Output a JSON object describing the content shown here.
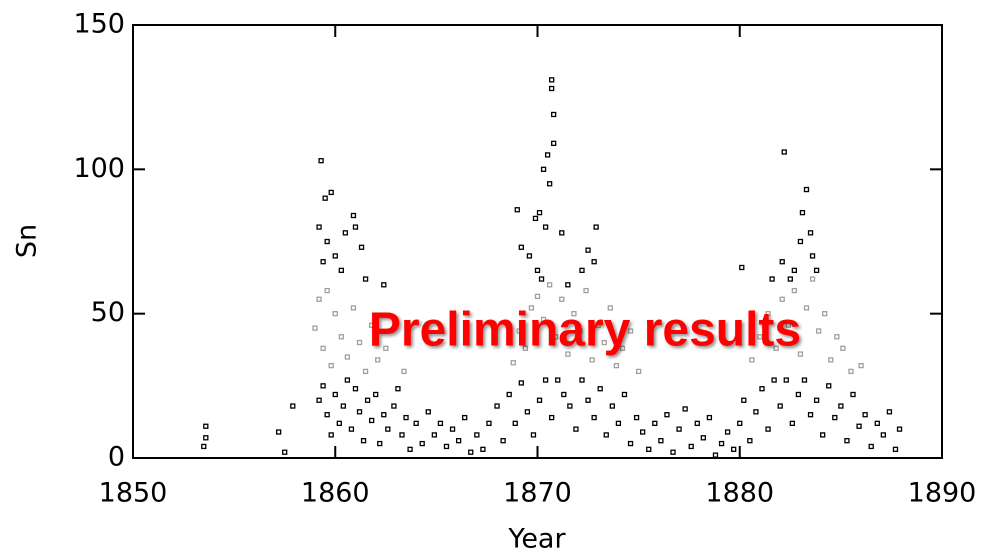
{
  "chart_data": {
    "type": "scatter",
    "xlabel": "Year",
    "ylabel": "Sn",
    "annotation": "Preliminary results",
    "annotation_color": "#ff0000",
    "xlim": [
      1850,
      1890
    ],
    "xticks": [
      1850,
      1860,
      1870,
      1880,
      1890
    ],
    "ylim": [
      0,
      150
    ],
    "yticks": [
      0,
      50,
      100,
      150
    ],
    "grid": false,
    "series": [
      {
        "color": "#a0a0a0",
        "x": [
          1859.0,
          1859.2,
          1859.4,
          1859.6,
          1859.8,
          1860.0,
          1860.3,
          1860.6,
          1860.9,
          1861.2,
          1861.5,
          1861.8,
          1862.1,
          1862.5,
          1863.4,
          1868.8,
          1869.1,
          1869.4,
          1869.7,
          1870.0,
          1870.3,
          1870.6,
          1870.9,
          1871.2,
          1871.5,
          1871.8,
          1872.1,
          1872.4,
          1872.7,
          1873.0,
          1873.3,
          1873.6,
          1873.9,
          1874.2,
          1874.6,
          1875.0,
          1880.6,
          1881.0,
          1881.4,
          1881.8,
          1882.1,
          1882.4,
          1882.7,
          1883.0,
          1883.3,
          1883.6,
          1883.9,
          1884.2,
          1884.5,
          1884.8,
          1885.1,
          1885.5,
          1886.0
        ],
        "values": [
          45,
          55,
          38,
          58,
          32,
          50,
          42,
          35,
          52,
          40,
          30,
          46,
          34,
          38,
          30,
          33,
          44,
          38,
          52,
          56,
          48,
          60,
          42,
          55,
          36,
          50,
          44,
          58,
          34,
          46,
          40,
          52,
          32,
          38,
          44,
          30,
          34,
          42,
          50,
          38,
          55,
          46,
          58,
          36,
          52,
          62,
          44,
          50,
          34,
          42,
          38,
          30,
          32
        ]
      },
      {
        "color": "#000000",
        "x": [
          1853.6,
          1853.6,
          1853.5,
          1857.2,
          1857.9,
          1857.5,
          1859.3,
          1859.5,
          1859.8,
          1859.2,
          1859.6,
          1860.0,
          1860.3,
          1860.9,
          1861.0,
          1861.3,
          1861.5,
          1862.4,
          1859.4,
          1860.5,
          1870.7,
          1870.7,
          1870.8,
          1870.8,
          1870.5,
          1870.3,
          1870.6,
          1870.1,
          1869.9,
          1870.4,
          1869.2,
          1869.6,
          1870.0,
          1871.2,
          1872.5,
          1872.9,
          1872.8,
          1869.0,
          1870.2,
          1871.5,
          1872.2,
          1882.2,
          1883.3,
          1883.1,
          1883.5,
          1883.0,
          1882.1,
          1882.7,
          1883.8,
          1880.1,
          1881.6,
          1882.5,
          1883.6,
          1859.2,
          1859.4,
          1859.6,
          1859.8,
          1860.0,
          1860.2,
          1860.4,
          1860.6,
          1860.8,
          1861.0,
          1861.2,
          1861.4,
          1861.6,
          1861.8,
          1862.0,
          1862.2,
          1862.4,
          1862.6,
          1862.9,
          1863.1,
          1863.3,
          1863.5,
          1863.7,
          1864.0,
          1864.3,
          1864.6,
          1864.9,
          1865.2,
          1865.5,
          1865.8,
          1866.1,
          1866.4,
          1866.7,
          1867.0,
          1867.3,
          1867.6,
          1868.0,
          1868.3,
          1868.6,
          1868.9,
          1869.2,
          1869.5,
          1869.8,
          1870.1,
          1870.4,
          1870.7,
          1871.0,
          1871.3,
          1871.6,
          1871.9,
          1872.2,
          1872.5,
          1872.8,
          1873.1,
          1873.4,
          1873.7,
          1874.0,
          1874.3,
          1874.6,
          1874.9,
          1875.2,
          1875.5,
          1875.8,
          1876.1,
          1876.4,
          1876.7,
          1877.0,
          1877.3,
          1877.6,
          1877.9,
          1878.2,
          1878.5,
          1878.8,
          1879.1,
          1879.4,
          1879.7,
          1880.0,
          1880.2,
          1880.5,
          1880.8,
          1881.1,
          1881.4,
          1881.7,
          1882.0,
          1882.3,
          1882.6,
          1882.9,
          1883.2,
          1883.5,
          1883.8,
          1884.1,
          1884.4,
          1884.7,
          1885.0,
          1885.3,
          1885.6,
          1885.9,
          1886.2,
          1886.5,
          1886.8,
          1887.1,
          1887.4,
          1887.7,
          1887.9
        ],
        "values": [
          11,
          7,
          4,
          9,
          18,
          2,
          103,
          90,
          92,
          80,
          75,
          70,
          65,
          84,
          80,
          73,
          62,
          60,
          68,
          78,
          131,
          128,
          119,
          109,
          105,
          100,
          95,
          85,
          83,
          80,
          73,
          70,
          65,
          78,
          72,
          80,
          68,
          86,
          62,
          60,
          65,
          106,
          93,
          85,
          78,
          75,
          68,
          65,
          65,
          66,
          62,
          62,
          70,
          20,
          25,
          15,
          8,
          22,
          12,
          18,
          27,
          10,
          24,
          16,
          6,
          20,
          13,
          22,
          5,
          15,
          10,
          18,
          24,
          8,
          14,
          3,
          12,
          5,
          16,
          8,
          12,
          4,
          10,
          6,
          14,
          2,
          8,
          3,
          12,
          18,
          6,
          22,
          12,
          26,
          16,
          8,
          20,
          27,
          14,
          27,
          22,
          18,
          10,
          27,
          20,
          14,
          24,
          8,
          18,
          12,
          22,
          5,
          14,
          9,
          3,
          12,
          6,
          15,
          2,
          10,
          17,
          4,
          12,
          7,
          14,
          1,
          5,
          9,
          3,
          12,
          20,
          6,
          16,
          24,
          10,
          27,
          18,
          27,
          12,
          22,
          27,
          15,
          20,
          8,
          25,
          14,
          18,
          6,
          22,
          11,
          15,
          4,
          12,
          8,
          16,
          3,
          10
        ]
      }
    ]
  }
}
